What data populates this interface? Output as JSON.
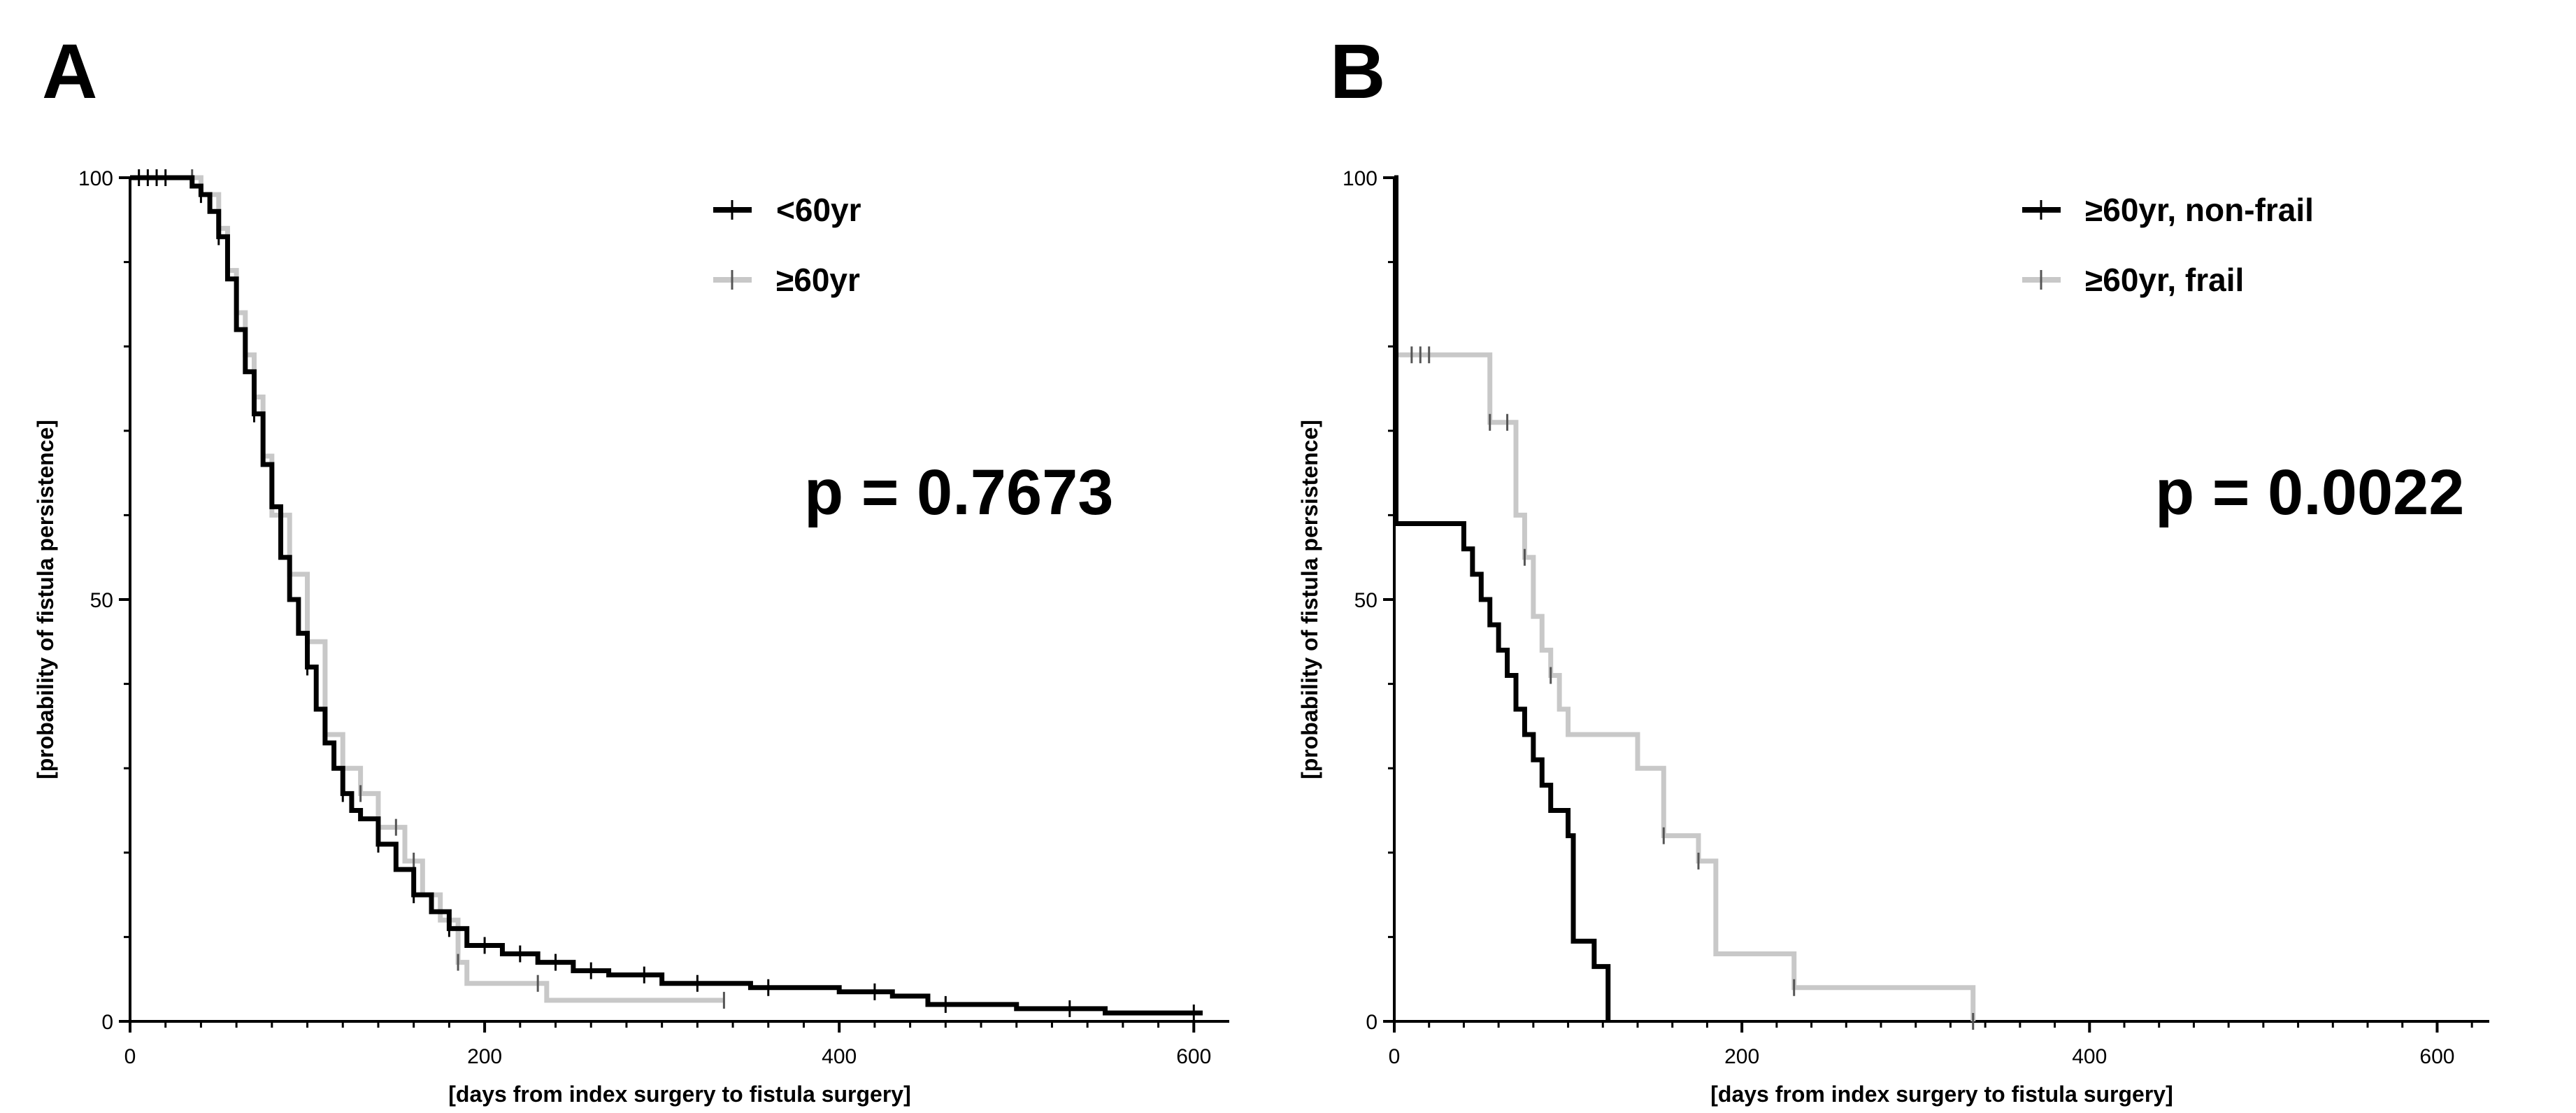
{
  "chart_data": [
    {
      "type": "line",
      "panel_label": "A",
      "xlabel": "[days from index surgery to fistula surgery]",
      "ylabel": "[probability of fistula persistence]",
      "xlim": [
        0,
        620
      ],
      "ylim": [
        0,
        100
      ],
      "x_ticks": [
        0,
        200,
        400,
        600
      ],
      "y_ticks": [
        0,
        50,
        100
      ],
      "grid": false,
      "legend_position": "top-right",
      "annotation": "p = 0.7673",
      "series": [
        {
          "name": "<60yr",
          "color": "#000000",
          "points": [
            [
              0,
              100
            ],
            [
              30,
              100
            ],
            [
              35,
              99
            ],
            [
              40,
              98
            ],
            [
              45,
              96
            ],
            [
              50,
              93
            ],
            [
              55,
              88
            ],
            [
              60,
              82
            ],
            [
              65,
              77
            ],
            [
              70,
              72
            ],
            [
              75,
              66
            ],
            [
              80,
              61
            ],
            [
              85,
              55
            ],
            [
              90,
              50
            ],
            [
              95,
              46
            ],
            [
              100,
              42
            ],
            [
              105,
              37
            ],
            [
              110,
              33
            ],
            [
              115,
              30
            ],
            [
              120,
              27
            ],
            [
              125,
              25
            ],
            [
              130,
              24
            ],
            [
              140,
              21
            ],
            [
              150,
              18
            ],
            [
              160,
              15
            ],
            [
              170,
              13
            ],
            [
              180,
              11
            ],
            [
              190,
              9
            ],
            [
              200,
              9
            ],
            [
              210,
              8
            ],
            [
              230,
              7
            ],
            [
              250,
              6
            ],
            [
              270,
              5.5
            ],
            [
              300,
              4.5
            ],
            [
              350,
              4
            ],
            [
              400,
              3.5
            ],
            [
              430,
              3
            ],
            [
              450,
              2
            ],
            [
              500,
              1.5
            ],
            [
              550,
              1
            ],
            [
              600,
              1
            ],
            [
              605,
              1
            ]
          ],
          "censor_x": [
            5,
            10,
            15,
            20,
            40,
            50,
            70,
            100,
            120,
            140,
            160,
            180,
            200,
            220,
            240,
            260,
            290,
            320,
            360,
            420,
            460,
            530,
            600
          ]
        },
        {
          "name": "≥60yr",
          "color": "#c8c8c8",
          "points": [
            [
              0,
              100
            ],
            [
              35,
              100
            ],
            [
              40,
              98
            ],
            [
              50,
              94
            ],
            [
              55,
              89
            ],
            [
              60,
              84
            ],
            [
              65,
              79
            ],
            [
              70,
              74
            ],
            [
              75,
              67
            ],
            [
              80,
              60
            ],
            [
              90,
              53
            ],
            [
              100,
              45
            ],
            [
              110,
              34
            ],
            [
              120,
              30
            ],
            [
              130,
              27
            ],
            [
              140,
              23
            ],
            [
              155,
              19
            ],
            [
              165,
              15
            ],
            [
              175,
              12
            ],
            [
              185,
              7
            ],
            [
              190,
              4.5
            ],
            [
              230,
              4.5
            ],
            [
              235,
              2.5
            ],
            [
              335,
              2.5
            ]
          ],
          "censor_x": [
            35,
            75,
            110,
            130,
            150,
            160,
            185,
            230,
            335
          ]
        }
      ]
    },
    {
      "type": "line",
      "panel_label": "B",
      "xlabel": "[days from index surgery to fistula surgery]",
      "ylabel": "[probability of fistula persistence]",
      "xlim": [
        0,
        630
      ],
      "ylim": [
        0,
        100
      ],
      "x_ticks": [
        0,
        200,
        400,
        600
      ],
      "y_ticks": [
        0,
        50,
        100
      ],
      "grid": false,
      "legend_position": "top-right",
      "annotation": "p = 0.0022",
      "series": [
        {
          "name": "≥60yr, non-frail",
          "color": "#000000",
          "points": [
            [
              0,
              100
            ],
            [
              1,
              100
            ],
            [
              1,
              59
            ],
            [
              40,
              59
            ],
            [
              40,
              56
            ],
            [
              45,
              53
            ],
            [
              50,
              50
            ],
            [
              55,
              47
            ],
            [
              60,
              44
            ],
            [
              65,
              41
            ],
            [
              70,
              37
            ],
            [
              75,
              34
            ],
            [
              80,
              31
            ],
            [
              85,
              28
            ],
            [
              90,
              25
            ],
            [
              98,
              25
            ],
            [
              100,
              22
            ],
            [
              103,
              9.5
            ],
            [
              115,
              9.5
            ],
            [
              115,
              6.5
            ],
            [
              123,
              6.5
            ],
            [
              123,
              0
            ]
          ],
          "censor_x": []
        },
        {
          "name": "≥60yr, frail",
          "color": "#c8c8c8",
          "points": [
            [
              0,
              79
            ],
            [
              55,
              79
            ],
            [
              55,
              71
            ],
            [
              70,
              71
            ],
            [
              70,
              60
            ],
            [
              75,
              55
            ],
            [
              80,
              48
            ],
            [
              85,
              44
            ],
            [
              90,
              41
            ],
            [
              95,
              37
            ],
            [
              100,
              34
            ],
            [
              140,
              34
            ],
            [
              140,
              30
            ],
            [
              155,
              30
            ],
            [
              155,
              22
            ],
            [
              175,
              22
            ],
            [
              175,
              19
            ],
            [
              185,
              19
            ],
            [
              185,
              8
            ],
            [
              230,
              8
            ],
            [
              230,
              4
            ],
            [
              333,
              4
            ],
            [
              333,
              0
            ]
          ],
          "censor_x": [
            10,
            15,
            20,
            55,
            65,
            75,
            90,
            155,
            175,
            230,
            333
          ]
        }
      ]
    }
  ]
}
